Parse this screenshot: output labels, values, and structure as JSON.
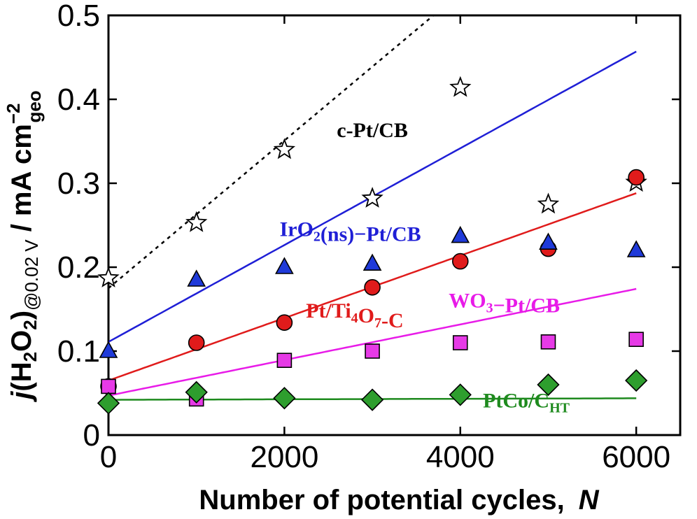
{
  "chart_data": {
    "type": "scatter",
    "xlabel_text": "Number of potential cycles,",
    "xlabel_var": "N",
    "ylabel": {
      "j": "j",
      "open": "(H",
      "sub2a": "2",
      "o": "O",
      "sub2b": "2",
      "close": ")",
      "at": "@0.02 V",
      "units": " / mA cm",
      "sup": "−2",
      "geo": "geo"
    },
    "xlim": [
      0,
      6500
    ],
    "ylim": [
      0,
      0.5
    ],
    "xticks": [
      0,
      2000,
      4000,
      6000
    ],
    "xtick_labels": [
      "0",
      "2000",
      "4000",
      "6000"
    ],
    "yticks": [
      0,
      0.1,
      0.2,
      0.3,
      0.4,
      0.5
    ],
    "ytick_labels": [
      "0",
      "0.1",
      "0.2",
      "0.3",
      "0.4",
      "0.5"
    ],
    "series": [
      {
        "id": "cpt",
        "name": "c-Pt/CB",
        "label_parts": [
          {
            "t": "c-Pt/CB"
          }
        ],
        "marker": "star",
        "color": "#000000",
        "fill": "#ffffff",
        "line_style": "dashed",
        "label_pos": [
          3000,
          0.355
        ],
        "x": [
          0,
          1000,
          2000,
          3000,
          4000,
          5000,
          6000
        ],
        "y": [
          0.187,
          0.253,
          0.34,
          0.282,
          0.414,
          0.275,
          0.301
        ],
        "fit": [
          -1.14e-11,
          8.8e-05,
          0.175
        ]
      },
      {
        "id": "iro2",
        "name": "IrO2(ns)−Pt/CB",
        "label_parts": [
          {
            "t": "IrO"
          },
          {
            "t": "2",
            "sub": true
          },
          {
            "t": "(ns)−Pt/CB"
          }
        ],
        "marker": "triangle",
        "color": "#1f1fd6",
        "fill": "#1f3ad9",
        "line_style": "solid",
        "label_pos": [
          2750,
          0.237
        ],
        "x": [
          0,
          1000,
          2000,
          3000,
          4000,
          5000,
          6000
        ],
        "y": [
          0.1,
          0.185,
          0.2,
          0.204,
          0.237,
          0.229,
          0.22
        ],
        "fit": [
          -6.83e-12,
          5.77e-05,
          0.111
        ]
      },
      {
        "id": "ti4o7",
        "name": "Pt/Ti4O7-C",
        "label_parts": [
          {
            "t": "Pt/Ti"
          },
          {
            "t": "4",
            "sub": true
          },
          {
            "t": "O"
          },
          {
            "t": "7",
            "sub": true
          },
          {
            "t": "-C"
          }
        ],
        "marker": "circle",
        "color": "#e01b1b",
        "fill": "#e01b1b",
        "line_style": "solid",
        "label_pos": [
          2800,
          0.14
        ],
        "x": [
          0,
          1000,
          2000,
          3000,
          4000,
          5000,
          6000
        ],
        "y": [
          0.058,
          0.11,
          0.134,
          0.176,
          0.207,
          0.222,
          0.307
        ],
        "fit": [
          0,
          3.72e-05,
          0.065
        ]
      },
      {
        "id": "wo3",
        "name": "WO3−Pt/CB",
        "label_parts": [
          {
            "t": "WO"
          },
          {
            "t": "3",
            "sub": true
          },
          {
            "t": "−Pt/CB"
          }
        ],
        "marker": "square",
        "color": "#e81be8",
        "fill": "#e63ae6",
        "line_style": "solid",
        "label_pos": [
          4500,
          0.152
        ],
        "x": [
          0,
          1000,
          2000,
          3000,
          4000,
          5000,
          6000
        ],
        "y": [
          0.058,
          0.043,
          0.089,
          0.1,
          0.11,
          0.111,
          0.114
        ],
        "fit": [
          -1.7e-12,
          2.12e-05,
          0.047
        ]
      },
      {
        "id": "ptco",
        "name": "PtCo/CHT",
        "label_parts": [
          {
            "t": "PtCo/C"
          },
          {
            "t": "HT",
            "sub": true
          }
        ],
        "marker": "diamond",
        "color": "#1e8a1e",
        "fill": "#2e9e2e",
        "line_style": "solid",
        "label_pos": [
          4750,
          0.033
        ],
        "x": [
          0,
          1000,
          2000,
          3000,
          4000,
          5000,
          6000
        ],
        "y": [
          0.038,
          0.051,
          0.044,
          0.042,
          0.048,
          0.06,
          0.065
        ],
        "fit": [
          6.7e-13,
          3e-07,
          0.042
        ]
      }
    ]
  }
}
